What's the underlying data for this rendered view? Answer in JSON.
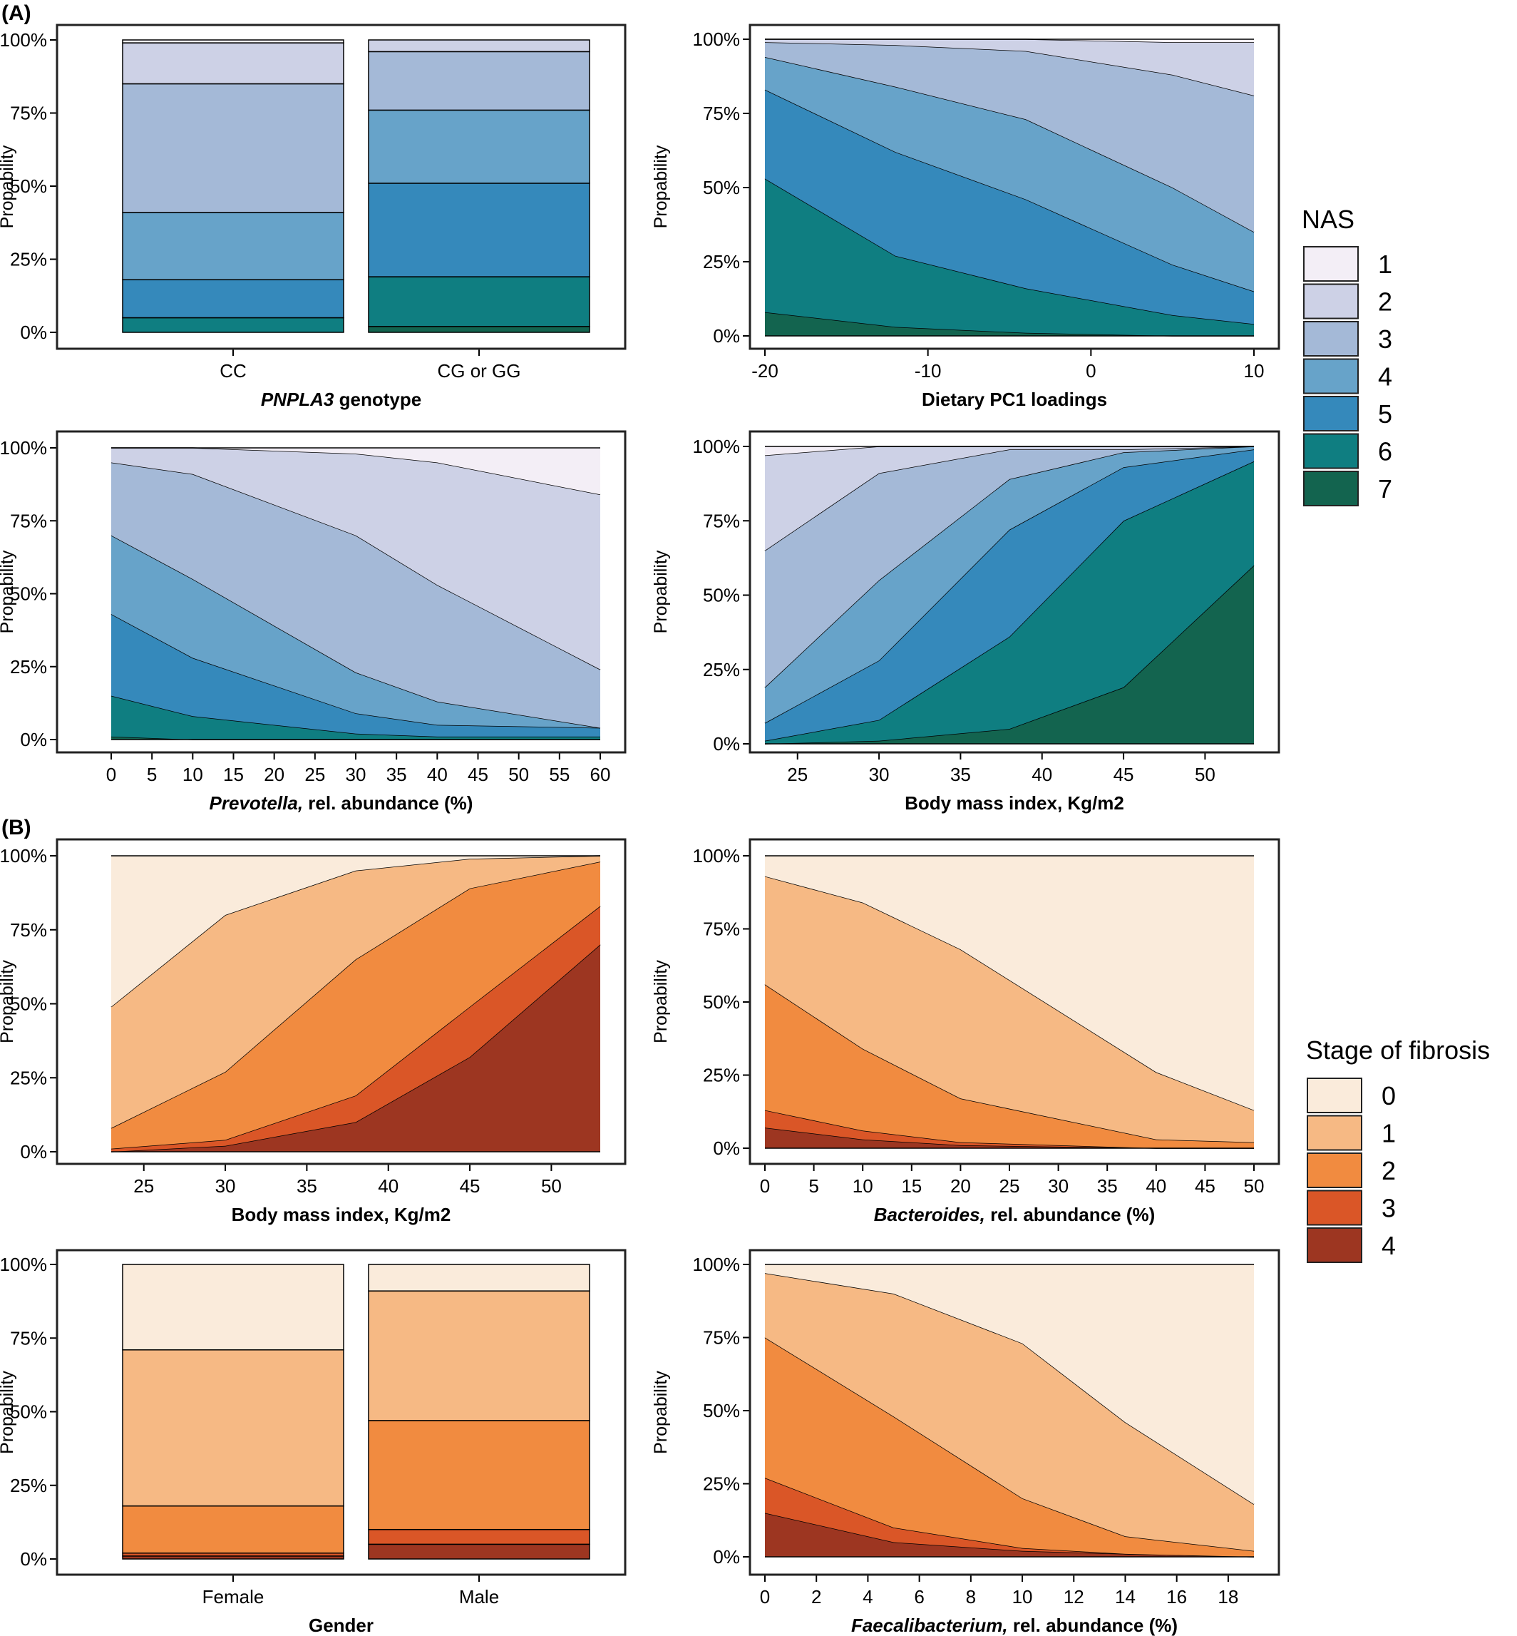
{
  "figure": {
    "panel_a_label": "(A)",
    "panel_b_label": "(B)",
    "nas_legend_title": "NAS",
    "fibrosis_legend_title": "Stage of fibrosis"
  },
  "legends": {
    "nas": {
      "title": "NAS",
      "entries": [
        "1",
        "2",
        "3",
        "4",
        "5",
        "6",
        "7"
      ],
      "colors": [
        "#f3eef6",
        "#cdd1e6",
        "#a4b9d7",
        "#67a3c9",
        "#3589bb",
        "#0f7e81",
        "#13644f"
      ]
    },
    "fibrosis": {
      "title": "Stage of fibrosis",
      "entries": [
        "0",
        "1",
        "2",
        "3",
        "4"
      ],
      "colors": [
        "#faebdb",
        "#f6b984",
        "#f18b40",
        "#da5627",
        "#9d3621"
      ]
    }
  },
  "chart_data": [
    {
      "id": "a1",
      "type": "bar",
      "stacked": true,
      "title": "",
      "xlabel_italic": "PNPLA3",
      "xlabel_rest": " genotype",
      "ylabel": "Propability",
      "categories": [
        "CC",
        "CG or GG"
      ],
      "ylim": [
        0,
        1
      ],
      "yticks": [
        "0%",
        "25%",
        "50%",
        "75%",
        "100%"
      ],
      "palette": "nas",
      "series": [
        {
          "name": "7",
          "values": [
            0.0,
            0.02
          ]
        },
        {
          "name": "6",
          "values": [
            0.05,
            0.17
          ]
        },
        {
          "name": "5",
          "values": [
            0.13,
            0.32
          ]
        },
        {
          "name": "4",
          "values": [
            0.23,
            0.25
          ]
        },
        {
          "name": "3",
          "values": [
            0.44,
            0.2
          ]
        },
        {
          "name": "2",
          "values": [
            0.14,
            0.04
          ]
        },
        {
          "name": "1",
          "values": [
            0.01,
            0.0
          ]
        }
      ]
    },
    {
      "id": "a2",
      "type": "area",
      "stacked": true,
      "title": "",
      "xlabel": "Dietary PC1 loadings",
      "ylabel": "Propability",
      "x": [
        -20,
        -12,
        -4,
        5,
        10
      ],
      "xlim": [
        -20,
        10
      ],
      "xticks": [
        -20,
        -10,
        0,
        10
      ],
      "xtick_labels": [
        "-20",
        "-10",
        "0",
        "10"
      ],
      "ylim": [
        0,
        1
      ],
      "yticks": [
        "0%",
        "25%",
        "50%",
        "75%",
        "100%"
      ],
      "palette": "nas",
      "series": [
        {
          "name": "7",
          "values": [
            0.08,
            0.03,
            0.01,
            0.0,
            0.0
          ]
        },
        {
          "name": "6",
          "values": [
            0.45,
            0.24,
            0.15,
            0.07,
            0.04
          ]
        },
        {
          "name": "5",
          "values": [
            0.3,
            0.35,
            0.3,
            0.17,
            0.11
          ]
        },
        {
          "name": "4",
          "values": [
            0.11,
            0.22,
            0.27,
            0.26,
            0.2
          ]
        },
        {
          "name": "3",
          "values": [
            0.05,
            0.14,
            0.23,
            0.38,
            0.46
          ]
        },
        {
          "name": "2",
          "values": [
            0.01,
            0.02,
            0.04,
            0.11,
            0.18
          ]
        },
        {
          "name": "1",
          "values": [
            0.0,
            0.0,
            0.0,
            0.01,
            0.01
          ]
        }
      ]
    },
    {
      "id": "a3",
      "type": "area",
      "stacked": true,
      "title": "",
      "xlabel_italic": "Prevotella,",
      "xlabel_rest": " rel. abundance (%)",
      "ylabel": "Propability",
      "x": [
        0,
        10,
        30,
        40,
        60
      ],
      "xlim": [
        0,
        60
      ],
      "xticks": [
        0,
        5,
        10,
        15,
        20,
        25,
        30,
        35,
        40,
        45,
        50,
        55,
        60
      ],
      "xtick_labels": [
        "0",
        "5",
        "10",
        "15",
        "20",
        "25",
        "30",
        "35",
        "40",
        "45",
        "50",
        "55",
        "60"
      ],
      "ylim": [
        0,
        1
      ],
      "yticks": [
        "0%",
        "25%",
        "50%",
        "75%",
        "100%"
      ],
      "palette": "nas",
      "series": [
        {
          "name": "7",
          "values": [
            0.01,
            0.0,
            0.0,
            0.0,
            0.0
          ]
        },
        {
          "name": "6",
          "values": [
            0.14,
            0.08,
            0.02,
            0.01,
            0.01
          ]
        },
        {
          "name": "5",
          "values": [
            0.28,
            0.2,
            0.07,
            0.04,
            0.03
          ]
        },
        {
          "name": "4",
          "values": [
            0.27,
            0.27,
            0.14,
            0.08,
            0.0
          ]
        },
        {
          "name": "3",
          "values": [
            0.25,
            0.36,
            0.47,
            0.4,
            0.2
          ]
        },
        {
          "name": "2",
          "values": [
            0.05,
            0.09,
            0.28,
            0.42,
            0.6
          ]
        },
        {
          "name": "1",
          "values": [
            0.0,
            0.0,
            0.02,
            0.05,
            0.16
          ]
        }
      ]
    },
    {
      "id": "a4",
      "type": "area",
      "stacked": true,
      "title": "",
      "xlabel": "Body mass index, Kg/m2",
      "ylabel": "Propability",
      "x": [
        23,
        30,
        38,
        45,
        53
      ],
      "xlim": [
        21.2,
        54.6
      ],
      "xticks": [
        25,
        30,
        35,
        40,
        45,
        50
      ],
      "xtick_labels": [
        "25",
        "30",
        "35",
        "40",
        "45",
        "50"
      ],
      "ylim": [
        0,
        1
      ],
      "yticks": [
        "0%",
        "25%",
        "50%",
        "75%",
        "100%"
      ],
      "palette": "nas",
      "series": [
        {
          "name": "7",
          "values": [
            0.0,
            0.01,
            0.05,
            0.19,
            0.6
          ]
        },
        {
          "name": "6",
          "values": [
            0.01,
            0.07,
            0.31,
            0.56,
            0.35
          ]
        },
        {
          "name": "5",
          "values": [
            0.06,
            0.2,
            0.36,
            0.18,
            0.04
          ]
        },
        {
          "name": "4",
          "values": [
            0.12,
            0.27,
            0.17,
            0.05,
            0.01
          ]
        },
        {
          "name": "3",
          "values": [
            0.46,
            0.36,
            0.1,
            0.01,
            0.0
          ]
        },
        {
          "name": "2",
          "values": [
            0.32,
            0.09,
            0.01,
            0.01,
            0.0
          ]
        },
        {
          "name": "1",
          "values": [
            0.03,
            0.0,
            0.0,
            0.0,
            0.0
          ]
        }
      ]
    },
    {
      "id": "b1",
      "type": "area",
      "stacked": true,
      "title": "",
      "xlabel": "Body mass index, Kg/m2",
      "ylabel": "Propability",
      "x": [
        23,
        30,
        38,
        45,
        53
      ],
      "xlim": [
        21.2,
        54.6
      ],
      "xticks": [
        25,
        30,
        35,
        40,
        45,
        50
      ],
      "xtick_labels": [
        "25",
        "30",
        "35",
        "40",
        "45",
        "50"
      ],
      "ylim": [
        0,
        1
      ],
      "yticks": [
        "0%",
        "25%",
        "50%",
        "75%",
        "100%"
      ],
      "palette": "fibrosis",
      "series": [
        {
          "name": "4",
          "values": [
            0.0,
            0.02,
            0.1,
            0.32,
            0.7
          ]
        },
        {
          "name": "3",
          "values": [
            0.01,
            0.02,
            0.09,
            0.17,
            0.13
          ]
        },
        {
          "name": "2",
          "values": [
            0.07,
            0.23,
            0.46,
            0.4,
            0.15
          ]
        },
        {
          "name": "1",
          "values": [
            0.41,
            0.53,
            0.3,
            0.1,
            0.02
          ]
        },
        {
          "name": "0",
          "values": [
            0.51,
            0.2,
            0.05,
            0.01,
            0.0
          ]
        }
      ]
    },
    {
      "id": "b2",
      "type": "area",
      "stacked": true,
      "title": "",
      "xlabel_italic": "Bacteroides,",
      "xlabel_rest": " rel. abundance (%)",
      "ylabel": "Propability",
      "x": [
        0,
        10,
        20,
        40,
        50
      ],
      "xlim": [
        0,
        50
      ],
      "xticks": [
        0,
        5,
        10,
        15,
        20,
        25,
        30,
        35,
        40,
        45,
        50
      ],
      "xtick_labels": [
        "0",
        "5",
        "10",
        "15",
        "20",
        "25",
        "30",
        "35",
        "40",
        "45",
        "50"
      ],
      "ylim": [
        0,
        1
      ],
      "yticks": [
        "0%",
        "25%",
        "50%",
        "75%",
        "100%"
      ],
      "palette": "fibrosis",
      "series": [
        {
          "name": "4",
          "values": [
            0.07,
            0.03,
            0.01,
            0.0,
            0.0
          ]
        },
        {
          "name": "3",
          "values": [
            0.06,
            0.03,
            0.01,
            0.0,
            0.0
          ]
        },
        {
          "name": "2",
          "values": [
            0.43,
            0.28,
            0.15,
            0.03,
            0.02
          ]
        },
        {
          "name": "1",
          "values": [
            0.37,
            0.5,
            0.51,
            0.23,
            0.11
          ]
        },
        {
          "name": "0",
          "values": [
            0.07,
            0.16,
            0.32,
            0.74,
            0.87
          ]
        }
      ]
    },
    {
      "id": "b3",
      "type": "bar",
      "stacked": true,
      "title": "",
      "xlabel": "Gender",
      "ylabel": "Propability",
      "categories": [
        "Female",
        "Male"
      ],
      "ylim": [
        0,
        1
      ],
      "yticks": [
        "0%",
        "25%",
        "50%",
        "75%",
        "100%"
      ],
      "palette": "fibrosis",
      "series": [
        {
          "name": "4",
          "values": [
            0.01,
            0.05
          ]
        },
        {
          "name": "3",
          "values": [
            0.01,
            0.05
          ]
        },
        {
          "name": "2",
          "values": [
            0.16,
            0.37
          ]
        },
        {
          "name": "1",
          "values": [
            0.53,
            0.44
          ]
        },
        {
          "name": "0",
          "values": [
            0.29,
            0.09
          ]
        }
      ]
    },
    {
      "id": "b4",
      "type": "area",
      "stacked": true,
      "title": "",
      "xlabel_italic": "Faecalibacterium,",
      "xlabel_rest": " rel. abundance (%)",
      "ylabel": "Propability",
      "x": [
        0,
        5,
        10,
        14,
        19
      ],
      "xlim": [
        0,
        19
      ],
      "xticks": [
        0,
        2,
        4,
        6,
        8,
        10,
        12,
        14,
        16,
        18
      ],
      "xtick_labels": [
        "0",
        "2",
        "4",
        "6",
        "8",
        "10",
        "12",
        "14",
        "16",
        "18"
      ],
      "ylim": [
        0,
        1
      ],
      "yticks": [
        "0%",
        "25%",
        "50%",
        "75%",
        "100%"
      ],
      "palette": "fibrosis",
      "series": [
        {
          "name": "4",
          "values": [
            0.15,
            0.05,
            0.02,
            0.01,
            0.0
          ]
        },
        {
          "name": "3",
          "values": [
            0.12,
            0.05,
            0.01,
            0.0,
            0.0
          ]
        },
        {
          "name": "2",
          "values": [
            0.48,
            0.38,
            0.17,
            0.06,
            0.02
          ]
        },
        {
          "name": "1",
          "values": [
            0.22,
            0.42,
            0.53,
            0.39,
            0.16
          ]
        },
        {
          "name": "0",
          "values": [
            0.03,
            0.1,
            0.27,
            0.54,
            0.82
          ]
        }
      ]
    }
  ]
}
